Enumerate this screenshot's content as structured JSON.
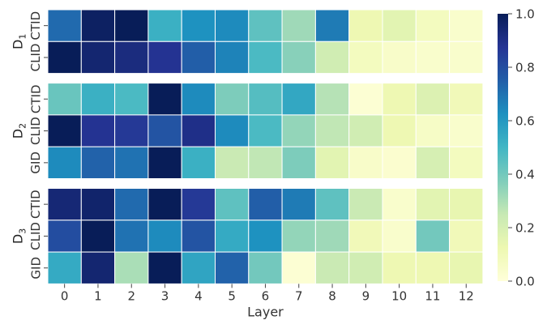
{
  "chart_data": {
    "type": "heatmap",
    "xlabel": "Layer",
    "x": [
      "0",
      "1",
      "2",
      "3",
      "4",
      "5",
      "6",
      "7",
      "8",
      "9",
      "10",
      "11",
      "12"
    ],
    "colormap": "YlGnBu",
    "colorbar": {
      "range": [
        0.0,
        1.0
      ],
      "ticks": [
        "0.0",
        "0.2",
        "0.4",
        "0.6",
        "0.8",
        "1.0"
      ]
    },
    "groups": [
      {
        "name": "D",
        "subscript": "1",
        "rows": [
          {
            "label": "CTID",
            "values": [
              0.72,
              0.98,
              1.0,
              0.52,
              0.62,
              0.64,
              0.44,
              0.32,
              0.68,
              0.12,
              0.16,
              0.08,
              0.04
            ]
          },
          {
            "label": "CLID",
            "values": [
              1.0,
              0.95,
              0.92,
              0.88,
              0.75,
              0.66,
              0.48,
              0.36,
              0.22,
              0.08,
              0.05,
              0.04,
              0.04
            ]
          }
        ]
      },
      {
        "name": "D",
        "subscript": "2",
        "rows": [
          {
            "label": "CTID",
            "values": [
              0.42,
              0.52,
              0.48,
              1.0,
              0.64,
              0.38,
              0.46,
              0.55,
              0.28,
              0.02,
              0.12,
              0.18,
              0.1
            ]
          },
          {
            "label": "CLID",
            "values": [
              1.0,
              0.88,
              0.86,
              0.78,
              0.9,
              0.64,
              0.48,
              0.34,
              0.26,
              0.22,
              0.12,
              0.06,
              0.04
            ]
          },
          {
            "label": "GID",
            "values": [
              0.64,
              0.74,
              0.7,
              1.0,
              0.52,
              0.24,
              0.26,
              0.38,
              0.16,
              0.05,
              0.03,
              0.2,
              0.08
            ]
          }
        ]
      },
      {
        "name": "D",
        "subscript": "3",
        "rows": [
          {
            "label": "CTID",
            "values": [
              0.94,
              0.96,
              0.72,
              1.0,
              0.86,
              0.44,
              0.75,
              0.68,
              0.44,
              0.24,
              0.04,
              0.16,
              0.14
            ]
          },
          {
            "label": "CLID",
            "values": [
              0.8,
              1.0,
              0.7,
              0.64,
              0.78,
              0.54,
              0.62,
              0.34,
              0.32,
              0.1,
              0.04,
              0.4,
              0.1
            ]
          },
          {
            "label": "GID",
            "values": [
              0.54,
              0.95,
              0.3,
              1.0,
              0.56,
              0.74,
              0.4,
              0.02,
              0.24,
              0.22,
              0.12,
              0.12,
              0.14
            ]
          }
        ]
      }
    ]
  }
}
